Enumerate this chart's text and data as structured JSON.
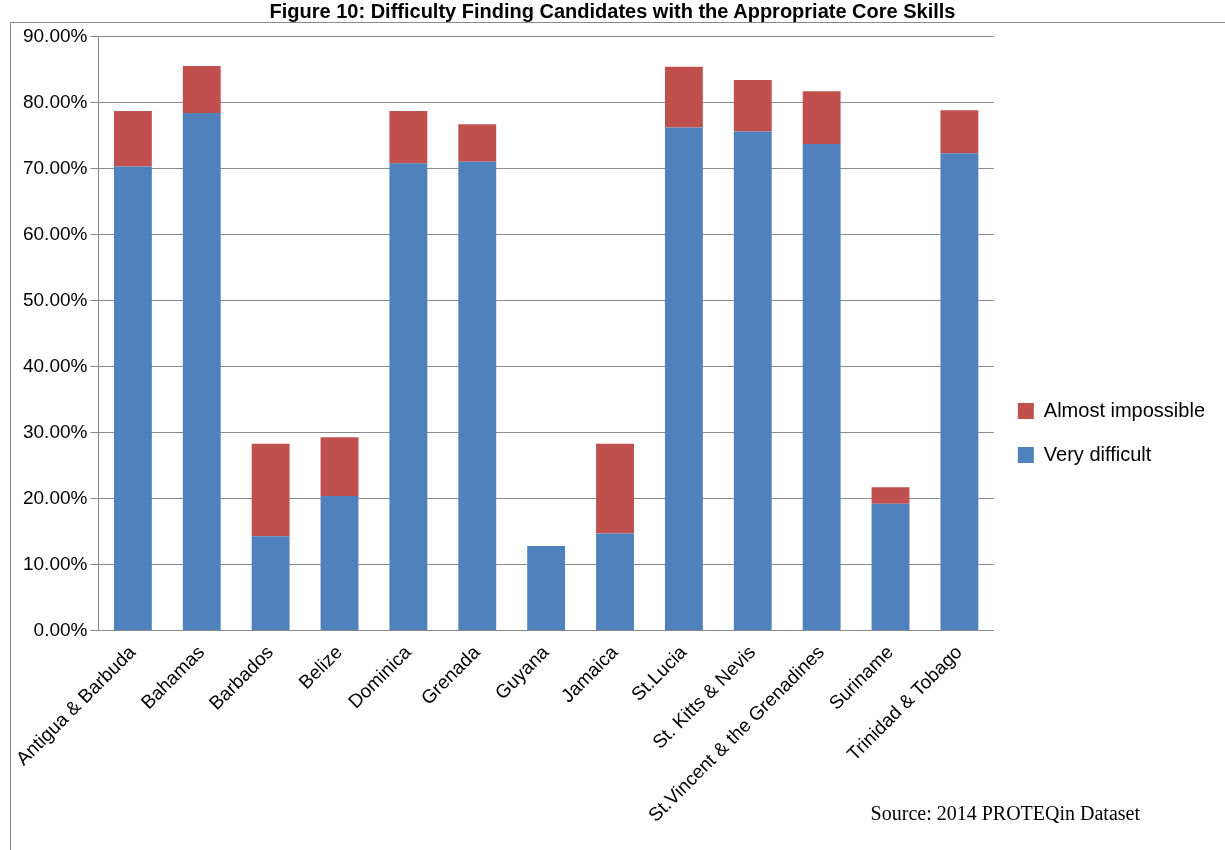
{
  "chart_data": {
    "type": "bar",
    "title": "Figure 10: Difficulty Finding Candidates with the Appropriate Core Skills",
    "stacked": true,
    "categories": [
      "Antigua & Barbuda",
      "Bahamas",
      "Barbados",
      "Belize",
      "Dominica",
      "Grenada",
      "Guyana",
      "Jamaica",
      "St.Lucia",
      "St. Kitts & Nevis",
      "St.Vincent & the Grenadines",
      "Suriname",
      "Trinidad & Tobago"
    ],
    "series": [
      {
        "name": "Very difficult",
        "color": "#4f81bd",
        "values": [
          70.3,
          78.4,
          14.3,
          20.4,
          70.8,
          71.0,
          12.8,
          14.7,
          76.2,
          75.6,
          73.7,
          19.2,
          72.3
        ]
      },
      {
        "name": "Almost impossible",
        "color": "#c0504d",
        "values": [
          8.4,
          7.1,
          14.0,
          8.9,
          7.9,
          5.7,
          0,
          13.6,
          9.2,
          7.8,
          8.0,
          2.5,
          6.5
        ]
      }
    ],
    "ylim": [
      0,
      90
    ],
    "yticks": [
      {
        "value": 0,
        "label": "0.00%"
      },
      {
        "value": 10,
        "label": "10.00%"
      },
      {
        "value": 20,
        "label": "20.00%"
      },
      {
        "value": 30,
        "label": "30.00%"
      },
      {
        "value": 40,
        "label": "40.00%"
      },
      {
        "value": 50,
        "label": "50.00%"
      },
      {
        "value": 60,
        "label": "60.00%"
      },
      {
        "value": 70,
        "label": "70.00%"
      },
      {
        "value": 80,
        "label": "80.00%"
      },
      {
        "value": 90,
        "label": "90.00%"
      }
    ],
    "grid": "y",
    "legend": "right",
    "annotations": [
      "Source: 2014 PROTEQin Dataset"
    ]
  }
}
